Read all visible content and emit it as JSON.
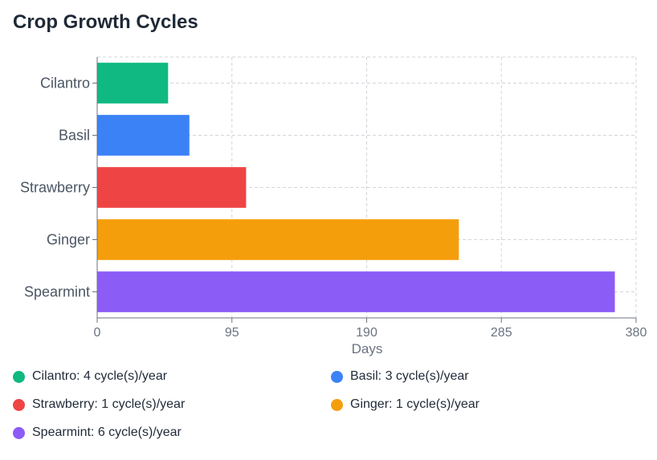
{
  "chart_data": {
    "type": "bar",
    "orientation": "horizontal",
    "title": "Crop Growth Cycles",
    "xlabel": "Days",
    "ylabel": "",
    "xlim": [
      0,
      380
    ],
    "ticks": [
      0,
      95,
      190,
      285,
      380
    ],
    "tick_labels": [
      "0",
      "95",
      "190",
      "285",
      "380"
    ],
    "grid": true,
    "categories": [
      "Cilantro",
      "Basil",
      "Strawberry",
      "Ginger",
      "Spearmint"
    ],
    "values": [
      50,
      65,
      105,
      255,
      365
    ],
    "colors": [
      "#10b981",
      "#3b82f6",
      "#ef4444",
      "#f59e0b",
      "#8b5cf6"
    ],
    "legend": [
      {
        "label": "Cilantro: 4 cycle(s)/year",
        "color": "#10b981"
      },
      {
        "label": "Basil: 3 cycle(s)/year",
        "color": "#3b82f6"
      },
      {
        "label": "Strawberry: 1 cycle(s)/year",
        "color": "#ef4444"
      },
      {
        "label": "Ginger: 1 cycle(s)/year",
        "color": "#f59e0b"
      },
      {
        "label": "Spearmint: 6 cycle(s)/year",
        "color": "#8b5cf6"
      }
    ]
  }
}
